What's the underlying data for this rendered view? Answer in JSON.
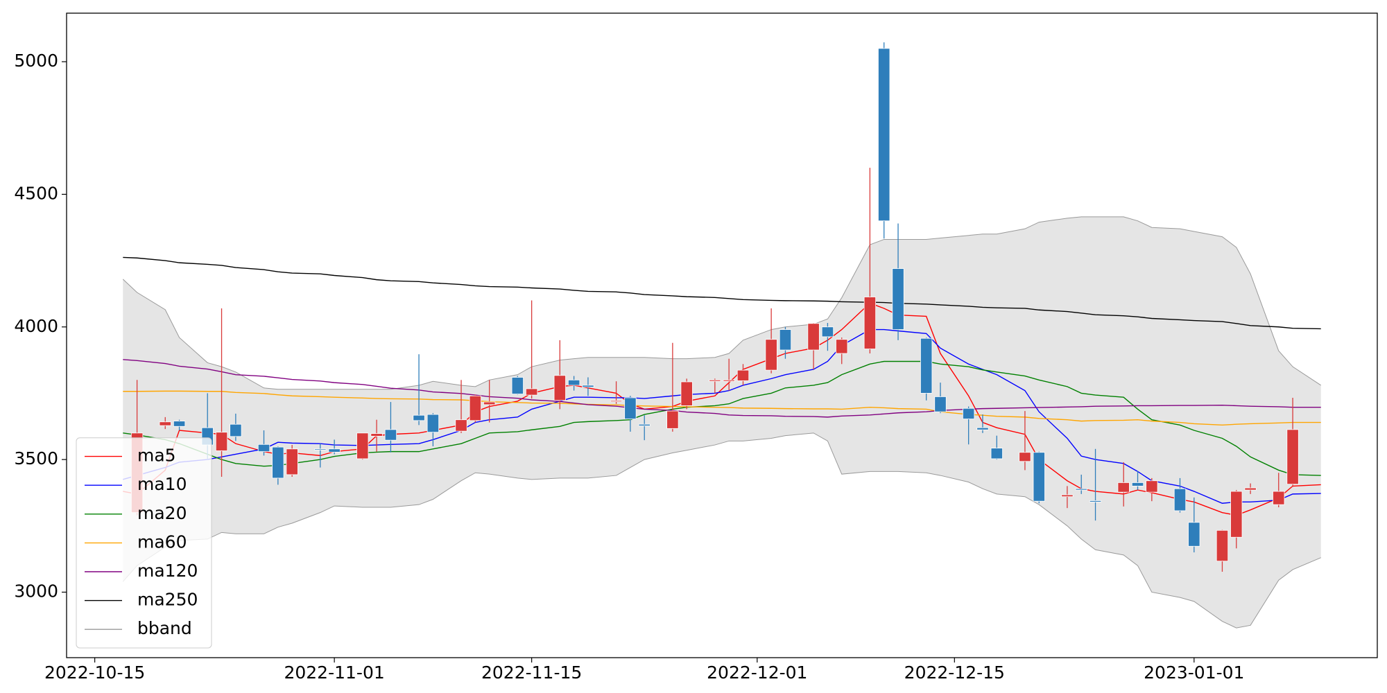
{
  "chart_data": {
    "type": "candlestick",
    "x": [
      "2022-10-17",
      "2022-10-18",
      "2022-10-20",
      "2022-10-21",
      "2022-10-23",
      "2022-10-24",
      "2022-10-25",
      "2022-10-27",
      "2022-10-28",
      "2022-10-29",
      "2022-10-31",
      "2022-11-01",
      "2022-11-03",
      "2022-11-04",
      "2022-11-05",
      "2022-11-07",
      "2022-11-08",
      "2022-11-10",
      "2022-11-11",
      "2022-11-12",
      "2022-11-14",
      "2022-11-15",
      "2022-11-17",
      "2022-11-18",
      "2022-11-19",
      "2022-11-21",
      "2022-11-22",
      "2022-11-23",
      "2022-11-25",
      "2022-11-26",
      "2022-11-28",
      "2022-11-29",
      "2022-11-30",
      "2022-12-02",
      "2022-12-03",
      "2022-12-05",
      "2022-12-06",
      "2022-12-07",
      "2022-12-09",
      "2022-12-10",
      "2022-12-11",
      "2022-12-13",
      "2022-12-14",
      "2022-12-16",
      "2022-12-17",
      "2022-12-18",
      "2022-12-20",
      "2022-12-21",
      "2022-12-23",
      "2022-12-24",
      "2022-12-25",
      "2022-12-27",
      "2022-12-28",
      "2022-12-29",
      "2022-12-31",
      "2023-01-01",
      "2023-01-03",
      "2023-01-04",
      "2023-01-05",
      "2023-01-07",
      "2023-01-08",
      "2023-01-10"
    ],
    "open": [
      null,
      3300,
      3628,
      3645,
      3620,
      3533,
      3633,
      3557,
      3547,
      3443,
      3540,
      3540,
      3503,
      3588,
      3613,
      3667,
      3670,
      3607,
      3647,
      3707,
      3810,
      3743,
      3723,
      3800,
      3780,
      3718,
      3733,
      3633,
      3617,
      3703,
      3795,
      3795,
      3797,
      3837,
      3990,
      3913,
      4000,
      3900,
      3917,
      5050,
      4220,
      3957,
      3737,
      3693,
      3620,
      3543,
      3493,
      3527,
      3360,
      3390,
      3345,
      3377,
      3413,
      3377,
      3390,
      3263,
      3117,
      3207,
      3385,
      3330,
      3407,
      null
    ],
    "high": [
      null,
      3800,
      3660,
      3650,
      3750,
      4070,
      3673,
      3610,
      3550,
      3555,
      3560,
      3575,
      3600,
      3650,
      3717,
      3897,
      3675,
      3800,
      3745,
      3800,
      3815,
      4100,
      3950,
      3815,
      3810,
      3795,
      3740,
      3667,
      3940,
      3805,
      3805,
      3880,
      3860,
      4070,
      4000,
      4015,
      4015,
      3960,
      4600,
      5073,
      4390,
      3960,
      3790,
      3700,
      3670,
      3590,
      3683,
      3530,
      3400,
      3443,
      3540,
      3490,
      3457,
      3430,
      3430,
      3357,
      3235,
      3385,
      3410,
      3450,
      3733,
      null
    ],
    "low": [
      null,
      3290,
      3615,
      3610,
      3500,
      3435,
      3570,
      3515,
      3405,
      3435,
      3470,
      3520,
      3500,
      3530,
      3527,
      3630,
      3550,
      3600,
      3640,
      3640,
      3745,
      3730,
      3690,
      3760,
      3740,
      3710,
      3605,
      3573,
      3605,
      3690,
      3750,
      3760,
      3780,
      3825,
      3880,
      3840,
      3910,
      3860,
      3900,
      4333,
      3950,
      3723,
      3675,
      3557,
      3600,
      3500,
      3460,
      3335,
      3317,
      3370,
      3270,
      3323,
      3385,
      3343,
      3300,
      3150,
      3077,
      3165,
      3370,
      3320,
      3397,
      null
    ],
    "close": [
      null,
      3600,
      3642,
      3625,
      3555,
      3603,
      3587,
      3530,
      3430,
      3540,
      3538,
      3528,
      3600,
      3598,
      3573,
      3647,
      3603,
      3650,
      3740,
      3717,
      3747,
      3767,
      3817,
      3780,
      3773,
      3722,
      3653,
      3627,
      3683,
      3793,
      3800,
      3800,
      3837,
      3953,
      3913,
      4013,
      3963,
      3953,
      4113,
      4400,
      3990,
      3750,
      3680,
      3653,
      3612,
      3503,
      3527,
      3343,
      3367,
      3385,
      3340,
      3413,
      3400,
      3420,
      3307,
      3173,
      3233,
      3380,
      3393,
      3380,
      3613,
      null
    ],
    "up_color": "#d93a3a",
    "down_color": "#2e7ebb",
    "series": [
      {
        "name": "ma5",
        "color": "#ff0000",
        "values": [
          3380,
          3370,
          3460,
          3610,
          3600,
          3595,
          3560,
          3530,
          3520,
          3525,
          3515,
          3530,
          3540,
          3590,
          3595,
          3600,
          3610,
          3630,
          3680,
          3700,
          3720,
          3750,
          3775,
          3780,
          3770,
          3750,
          3710,
          3690,
          3700,
          3720,
          3740,
          3790,
          3840,
          3880,
          3900,
          3920,
          3950,
          3990,
          4090,
          4070,
          4045,
          4040,
          3900,
          3740,
          3640,
          3620,
          3595,
          3500,
          3420,
          3390,
          3380,
          3370,
          3385,
          3375,
          3350,
          3340,
          3300,
          3290,
          3310,
          3355,
          3400,
          3405
        ]
      },
      {
        "name": "ma10",
        "color": "#0000ff",
        "values": [
          3425,
          3440,
          3470,
          3490,
          3500,
          3510,
          3520,
          3540,
          3565,
          3562,
          3560,
          3555,
          3553,
          3555,
          3557,
          3560,
          3575,
          3610,
          3640,
          3650,
          3660,
          3690,
          3720,
          3735,
          3735,
          3733,
          3733,
          3730,
          3740,
          3745,
          3750,
          3760,
          3780,
          3805,
          3820,
          3840,
          3870,
          3930,
          3990,
          3990,
          3985,
          3975,
          3920,
          3860,
          3840,
          3820,
          3760,
          3680,
          3580,
          3513,
          3500,
          3485,
          3455,
          3420,
          3400,
          3380,
          3335,
          3340,
          3340,
          3347,
          3370,
          3372
        ]
      },
      {
        "name": "ma20",
        "color": "#008000",
        "values": [
          3600,
          3593,
          3575,
          3560,
          3520,
          3500,
          3485,
          3475,
          3478,
          3485,
          3500,
          3512,
          3525,
          3528,
          3530,
          3530,
          3540,
          3560,
          3580,
          3600,
          3605,
          3612,
          3625,
          3640,
          3643,
          3647,
          3650,
          3670,
          3690,
          3697,
          3703,
          3710,
          3730,
          3750,
          3770,
          3780,
          3790,
          3820,
          3860,
          3870,
          3870,
          3870,
          3860,
          3850,
          3838,
          3830,
          3815,
          3800,
          3775,
          3750,
          3743,
          3735,
          3690,
          3650,
          3630,
          3610,
          3580,
          3550,
          3510,
          3460,
          3443,
          3440
        ]
      },
      {
        "name": "ma60",
        "color": "#ffa500",
        "values": [
          3757,
          3757,
          3758,
          3758,
          3757,
          3757,
          3753,
          3749,
          3744,
          3740,
          3737,
          3735,
          3732,
          3730,
          3729,
          3728,
          3726,
          3725,
          3722,
          3718,
          3715,
          3713,
          3712,
          3710,
          3708,
          3706,
          3704,
          3702,
          3700,
          3699,
          3697,
          3696,
          3694,
          3693,
          3692,
          3691,
          3691,
          3690,
          3697,
          3695,
          3692,
          3690,
          3680,
          3670,
          3667,
          3663,
          3660,
          3655,
          3650,
          3645,
          3647,
          3648,
          3650,
          3645,
          3640,
          3635,
          3630,
          3633,
          3635,
          3638,
          3640,
          3640
        ]
      },
      {
        "name": "ma120",
        "color": "#800080",
        "values": [
          3877,
          3873,
          3862,
          3852,
          3841,
          3831,
          3820,
          3814,
          3808,
          3802,
          3796,
          3790,
          3783,
          3776,
          3769,
          3762,
          3755,
          3749,
          3743,
          3737,
          3731,
          3725,
          3719,
          3713,
          3707,
          3701,
          3695,
          3690,
          3685,
          3679,
          3674,
          3668,
          3666,
          3665,
          3663,
          3662,
          3660,
          3664,
          3668,
          3672,
          3676,
          3680,
          3685,
          3690,
          3692,
          3693,
          3695,
          3696,
          3698,
          3699,
          3701,
          3702,
          3703,
          3703,
          3704,
          3704,
          3705,
          3703,
          3701,
          3699,
          3697,
          3697
        ]
      },
      {
        "name": "ma250",
        "color": "#000000",
        "values": [
          4262,
          4260,
          4250,
          4242,
          4236,
          4232,
          4224,
          4216,
          4208,
          4203,
          4200,
          4194,
          4186,
          4178,
          4174,
          4171,
          4166,
          4160,
          4155,
          4152,
          4150,
          4147,
          4143,
          4138,
          4134,
          4132,
          4128,
          4122,
          4117,
          4114,
          4111,
          4107,
          4103,
          4100,
          4099,
          4098,
          4097,
          4095,
          4093,
          4092,
          4089,
          4086,
          4083,
          4078,
          4074,
          4072,
          4070,
          4064,
          4058,
          4052,
          4046,
          4042,
          4038,
          4032,
          4027,
          4024,
          4020,
          4013,
          4005,
          4000,
          3995,
          3993
        ]
      }
    ],
    "band": {
      "name": "bband",
      "color": "#999999",
      "fill": "#e5e5e5",
      "upper": [
        4180,
        4130,
        4065,
        3960,
        3865,
        3850,
        3830,
        3770,
        3765,
        3765,
        3765,
        3765,
        3765,
        3765,
        3765,
        3780,
        3795,
        3780,
        3775,
        3800,
        3820,
        3850,
        3875,
        3880,
        3885,
        3885,
        3885,
        3885,
        3880,
        3880,
        3885,
        3900,
        3950,
        3990,
        4000,
        4010,
        4030,
        4110,
        4310,
        4330,
        4330,
        4330,
        4335,
        4345,
        4350,
        4350,
        4370,
        4395,
        4410,
        4415,
        4415,
        4415,
        4400,
        4375,
        4370,
        4360,
        4340,
        4300,
        4200,
        3910,
        3850,
        3780
      ],
      "lower": [
        3040,
        3100,
        3170,
        3195,
        3200,
        3225,
        3220,
        3220,
        3245,
        3260,
        3300,
        3325,
        3320,
        3320,
        3320,
        3330,
        3350,
        3420,
        3450,
        3445,
        3430,
        3425,
        3430,
        3430,
        3430,
        3440,
        3470,
        3500,
        3525,
        3535,
        3555,
        3570,
        3570,
        3580,
        3590,
        3600,
        3570,
        3445,
        3455,
        3455,
        3455,
        3450,
        3440,
        3415,
        3390,
        3370,
        3360,
        3330,
        3250,
        3200,
        3160,
        3140,
        3100,
        3000,
        2980,
        2965,
        2890,
        2865,
        2875,
        3045,
        3085,
        3130
      ]
    },
    "xlim": [
      "2022-10-13",
      "2023-01-14"
    ],
    "ylim": [
      2753,
      5183
    ],
    "xticks": [
      "2022-10-15",
      "2022-11-01",
      "2022-11-15",
      "2022-12-01",
      "2022-12-15",
      "2023-01-01"
    ],
    "yticks": [
      3000,
      3500,
      4000,
      4500,
      5000
    ],
    "legend": "lower left"
  }
}
